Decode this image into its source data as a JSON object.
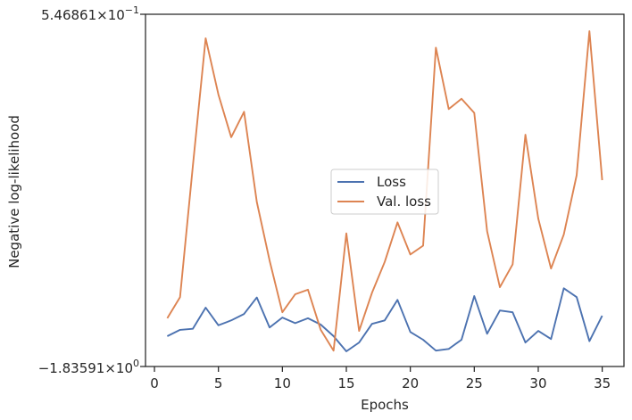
{
  "chart_data": {
    "type": "line",
    "xlabel": "Epochs",
    "ylabel": "Negative log-likelihood",
    "xlim": [
      -0.7,
      36.7
    ],
    "ylim_labels": {
      "top_mantissa": "5.46861",
      "top_base": "×10",
      "top_exp": "−1",
      "bottom_mantissa": "−1.83591",
      "bottom_base": "×10",
      "bottom_exp": "0"
    },
    "x_ticks": [
      0,
      5,
      10,
      15,
      20,
      25,
      30,
      35
    ],
    "x_tick_labels": [
      "0",
      "5",
      "10",
      "15",
      "20",
      "25",
      "30",
      "35"
    ],
    "x": [
      1,
      2,
      3,
      4,
      5,
      6,
      7,
      8,
      9,
      10,
      11,
      12,
      13,
      14,
      15,
      16,
      17,
      18,
      19,
      20,
      21,
      22,
      23,
      24,
      25,
      26,
      27,
      28,
      29,
      30,
      31,
      32,
      33,
      34,
      35
    ],
    "value_scale_note": "values normalized between bottom (0) and top (1) of y-axis limits",
    "series": [
      {
        "name": "Loss",
        "color": "#4c72b0",
        "values": [
          0.086,
          0.104,
          0.107,
          0.167,
          0.117,
          0.131,
          0.149,
          0.196,
          0.111,
          0.139,
          0.123,
          0.137,
          0.119,
          0.086,
          0.043,
          0.068,
          0.121,
          0.131,
          0.189,
          0.098,
          0.076,
          0.045,
          0.05,
          0.076,
          0.2,
          0.093,
          0.159,
          0.154,
          0.068,
          0.101,
          0.078,
          0.222,
          0.197,
          0.072,
          0.144
        ]
      },
      {
        "name": "Val. loss",
        "color": "#dd8452",
        "values": [
          0.137,
          0.197,
          0.568,
          0.932,
          0.772,
          0.651,
          0.723,
          0.467,
          0.301,
          0.154,
          0.205,
          0.218,
          0.104,
          0.045,
          0.378,
          0.101,
          0.209,
          0.297,
          0.409,
          0.318,
          0.343,
          0.905,
          0.731,
          0.76,
          0.72,
          0.384,
          0.225,
          0.29,
          0.658,
          0.42,
          0.278,
          0.375,
          0.543,
          0.952,
          0.529
        ]
      }
    ],
    "legend_position": "center-right",
    "grid": false
  }
}
